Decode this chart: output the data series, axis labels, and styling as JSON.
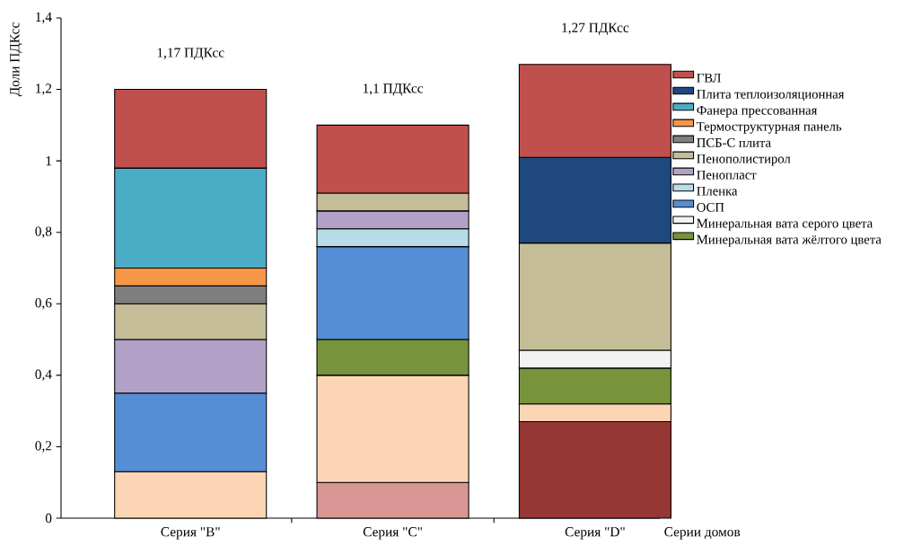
{
  "chart_data": {
    "type": "bar",
    "stacked": true,
    "ylabel": "Доли ПДКсс",
    "xlabel": "Серии домов",
    "categories": [
      "Серия \"B\"",
      "Серия \"C\"",
      "Серия \"D\""
    ],
    "ylim": [
      0,
      1.4
    ],
    "yticks": [
      0,
      {
        "value": 0.2,
        "label": "0,2"
      },
      {
        "value": 0.4,
        "label": "0,4"
      },
      {
        "value": 0.6,
        "label": "0,6"
      },
      {
        "value": 0.8,
        "label": "0,8"
      },
      1,
      {
        "value": 1.2,
        "label": "1,2"
      },
      {
        "value": 1.4,
        "label": "1,4"
      }
    ],
    "grid": false,
    "legend": "right",
    "series": [
      {
        "color": "#953735",
        "values": [
          null,
          null,
          0.27
        ]
      },
      {
        "color": "#d99694",
        "values": [
          null,
          0.1,
          null
        ]
      },
      {
        "color": "#fcd5b5",
        "values": [
          0.13,
          0.3,
          0.05
        ]
      },
      {
        "name": "Минеральная вата жёлтого цвета",
        "color": "#77933c",
        "values": [
          null,
          0.1,
          0.1
        ]
      },
      {
        "name": "Минеральная вата серого цвета",
        "color": "#f2f2f2",
        "values": [
          null,
          null,
          0.05
        ]
      },
      {
        "name": "ОСП",
        "color": "#558ed5",
        "values": [
          0.22,
          0.26,
          null
        ]
      },
      {
        "name": "Пленка",
        "color": "#b7dee8",
        "values": [
          null,
          0.05,
          null
        ]
      },
      {
        "name": "Пенопласт",
        "color": "#b2a1c7",
        "values": [
          0.15,
          0.05,
          null
        ]
      },
      {
        "name": "Пенополистирол",
        "color": "#c4bd97",
        "values": [
          0.1,
          0.05,
          0.3
        ]
      },
      {
        "name": "ПСБ-С плита",
        "color": "#7f7f7f",
        "values": [
          0.05,
          null,
          null
        ]
      },
      {
        "name": "Термоструктурная панель",
        "color": "#f79646",
        "values": [
          0.05,
          null,
          null
        ]
      },
      {
        "name": "Фанера прессованная",
        "color": "#4bacc6",
        "values": [
          0.28,
          null,
          null
        ]
      },
      {
        "name": "Плита теплоизоляционная",
        "color": "#1f497d",
        "values": [
          null,
          null,
          0.24
        ]
      },
      {
        "name": "ГВЛ",
        "color": "#c0504d",
        "values": [
          0.22,
          0.19,
          0.26
        ]
      }
    ],
    "annotations": [
      "1,17 ПДКсс",
      "1,1 ПДКсс",
      "1,27 ПДКсс"
    ]
  }
}
